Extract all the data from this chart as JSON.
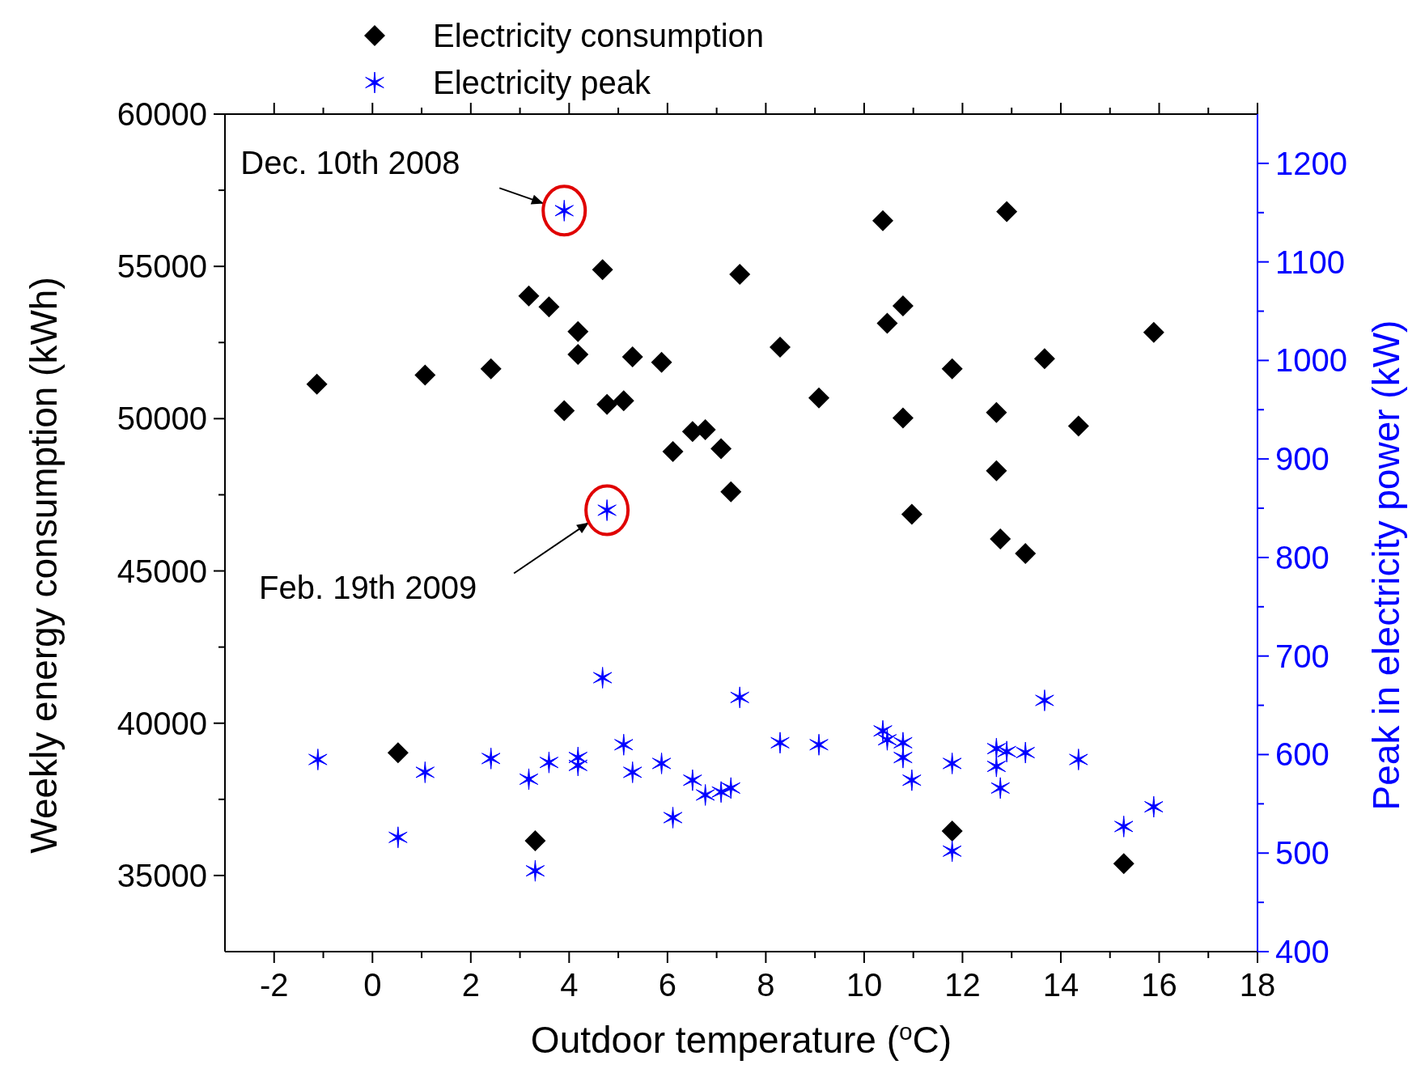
{
  "chart_data": {
    "type": "scatter",
    "xlabel": "Outdoor temperature ($^{o}$C)",
    "ylabel": "Weekly energy consumption (kWh)",
    "y2label": "Peak in electricity power (kW)",
    "xlim": [
      -3,
      18
    ],
    "xticks": [
      -2,
      0,
      2,
      4,
      6,
      8,
      10,
      12,
      14,
      16,
      18
    ],
    "ylim": [
      32500,
      60000
    ],
    "yticks": [
      35000,
      40000,
      45000,
      50000,
      55000,
      60000
    ],
    "y2lim": [
      400,
      1250
    ],
    "y2ticks": [
      400,
      500,
      600,
      700,
      800,
      900,
      1000,
      1100,
      1200
    ],
    "legend": "top",
    "grid": false,
    "annotations": [
      "Dec. 10th 2008",
      "Feb. 19th 2009"
    ],
    "series": [
      {
        "name": "Electricity consumption",
        "color": "#000000",
        "marker": "diamond",
        "x": [
          -1.13,
          0.52,
          1.07,
          2.41,
          3.18,
          3.59,
          3.31,
          4.18,
          4.18,
          3.9,
          4.68,
          4.77,
          5.11,
          5.29,
          5.88,
          6.11,
          6.51,
          6.77,
          7.09,
          7.29,
          7.47,
          8.29,
          9.08,
          10.38,
          10.47,
          10.79,
          10.79,
          10.97,
          11.79,
          11.79,
          12.69,
          12.69,
          12.77,
          12.9,
          13.28,
          13.67,
          14.36,
          15.28,
          15.89
        ],
        "values": [
          51130,
          39030,
          51430,
          51640,
          54030,
          53670,
          36140,
          52860,
          52110,
          50260,
          54890,
          50470,
          50590,
          52030,
          51850,
          48920,
          49580,
          49640,
          49010,
          47600,
          54740,
          52350,
          50680,
          56500,
          53130,
          53700,
          50020,
          46860,
          51640,
          36460,
          50200,
          48290,
          46050,
          56800,
          45570,
          51970,
          49760,
          35390,
          52830
        ]
      },
      {
        "name": "Electricity peak",
        "color": "#0000ff",
        "marker": "cross",
        "axis": "y2",
        "x": [
          3.9,
          4.77,
          -1.11,
          0.52,
          1.07,
          2.41,
          3.18,
          3.59,
          3.31,
          4.18,
          4.18,
          4.68,
          5.11,
          5.29,
          5.88,
          6.11,
          6.51,
          6.77,
          7.09,
          7.29,
          7.47,
          8.29,
          9.08,
          10.38,
          10.47,
          10.79,
          10.79,
          10.97,
          11.79,
          11.79,
          12.69,
          12.69,
          12.77,
          12.9,
          13.28,
          13.67,
          14.36,
          15.28,
          15.89
        ],
        "values": [
          1152,
          848,
          595,
          516,
          582,
          596,
          575,
          592,
          482,
          597,
          589,
          678,
          610,
          582,
          591,
          536,
          574,
          559,
          562,
          566,
          658,
          612,
          610,
          624,
          615,
          612,
          597,
          574,
          591,
          502,
          606,
          588,
          566,
          603,
          602,
          655,
          595,
          527,
          547
        ]
      }
    ]
  }
}
